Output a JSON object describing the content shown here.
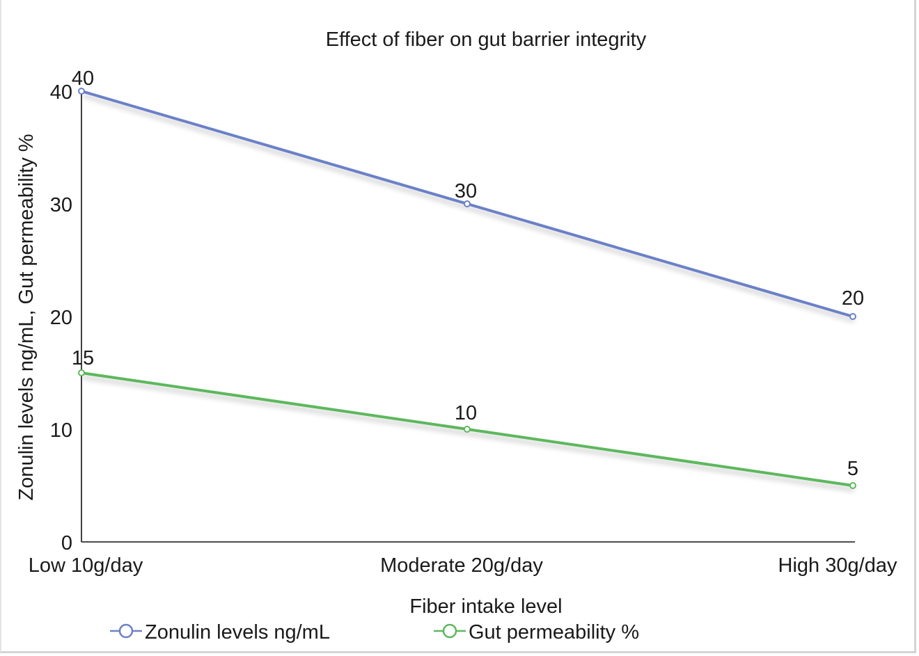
{
  "chart_data": {
    "type": "line",
    "title": "Effect of fiber on gut barrier integrity",
    "xlabel": "Fiber intake level",
    "ylabel": "Zonulin levels ng/mL, Gut permeability %",
    "categories": [
      "Low 10g/day",
      "Moderate 20g/day",
      "High 30g/day"
    ],
    "ylim": [
      0,
      40
    ],
    "yticks": [
      "0",
      "10",
      "20",
      "30",
      "40"
    ],
    "grid": false,
    "legend_position": "bottom",
    "series": [
      {
        "name": "Zonulin levels ng/mL",
        "values": [
          40,
          30,
          20
        ],
        "labels": [
          "40",
          "30",
          "20"
        ],
        "color": "#6b80c8"
      },
      {
        "name": "Gut permeability %",
        "values": [
          15,
          10,
          5
        ],
        "labels": [
          "15",
          "10",
          "5"
        ],
        "color": "#5cb85c"
      }
    ]
  }
}
